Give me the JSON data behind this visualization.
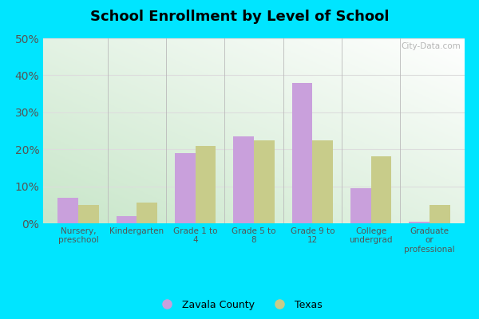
{
  "title": "School Enrollment by Level of School",
  "categories": [
    "Nursery,\npreschool",
    "Kindergarten",
    "Grade 1 to\n4",
    "Grade 5 to\n8",
    "Grade 9 to\n12",
    "College\nundergrad",
    "Graduate\nor\nprofessional"
  ],
  "zavala_values": [
    7.0,
    2.0,
    19.0,
    23.5,
    38.0,
    9.5,
    0.5
  ],
  "texas_values": [
    5.0,
    5.5,
    21.0,
    22.5,
    22.5,
    18.0,
    5.0
  ],
  "zavala_color": "#c9a0dc",
  "texas_color": "#c8cc8a",
  "bg_top_right": "#ffffff",
  "bg_bottom_left": "#c8e6c9",
  "outer_background": "#00e5ff",
  "ylim": [
    0,
    50
  ],
  "yticks": [
    0,
    10,
    20,
    30,
    40,
    50
  ],
  "legend_labels": [
    "Zavala County",
    "Texas"
  ],
  "watermark": "City-Data.com",
  "bar_width": 0.35,
  "separator_color": "#bbbbbb",
  "grid_color": "#dddddd"
}
